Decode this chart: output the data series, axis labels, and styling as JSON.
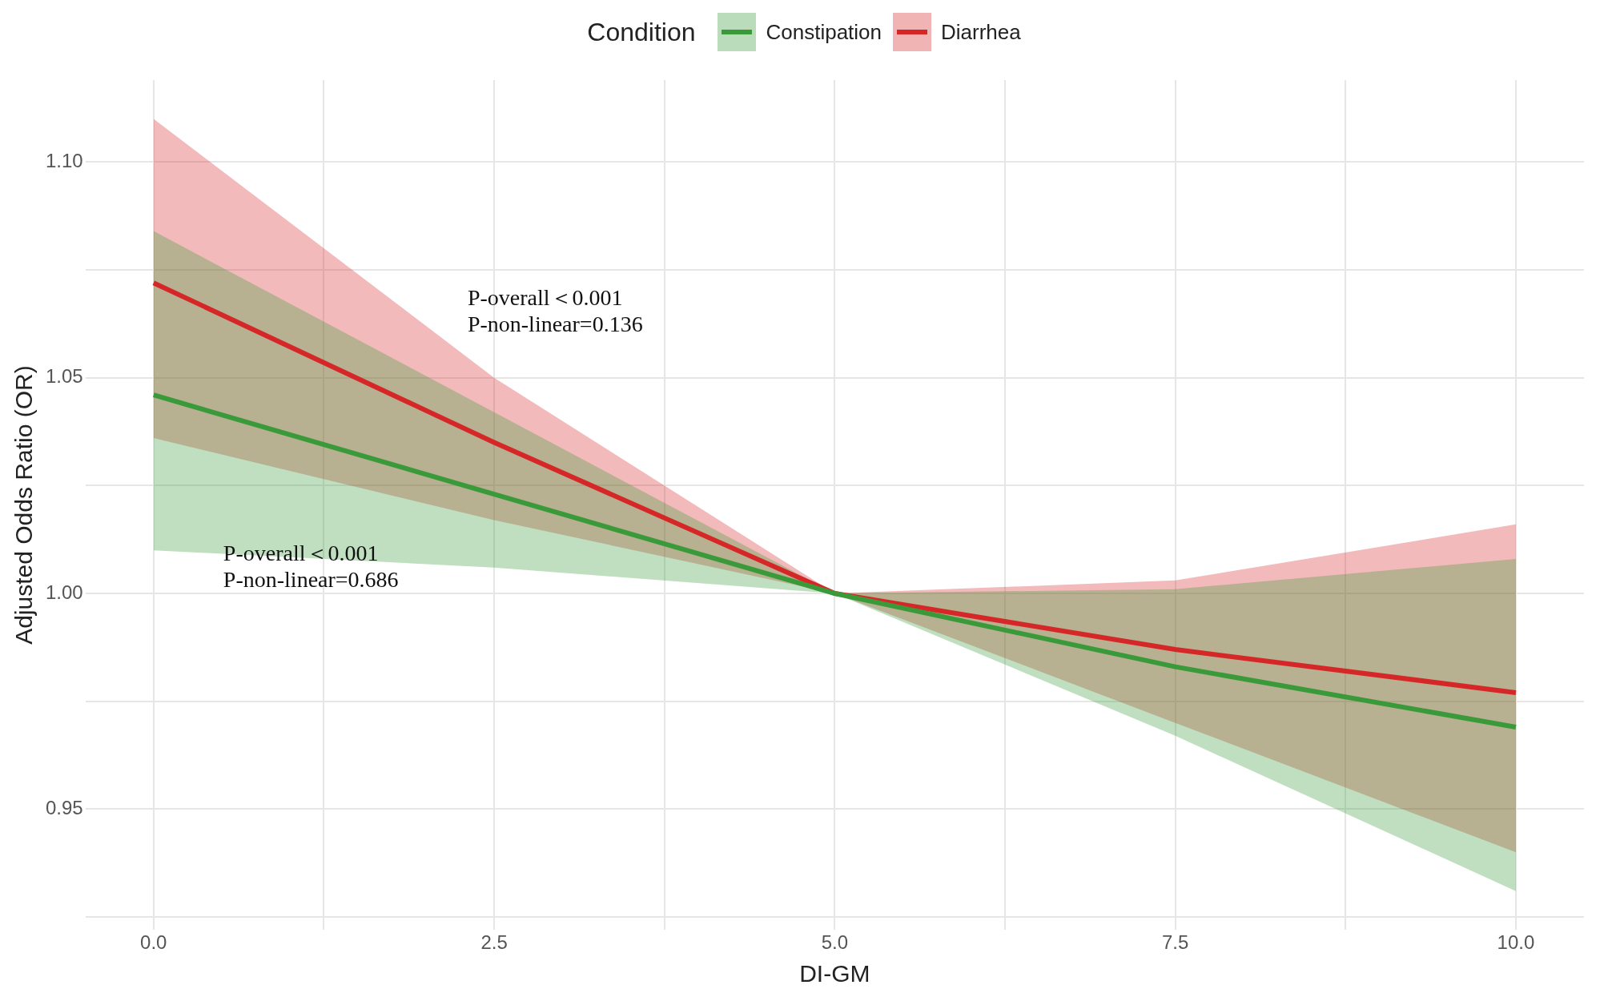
{
  "chart_data": {
    "type": "line",
    "xlabel": "DI-GM",
    "ylabel": "Adjusted Odds Ratio (OR)",
    "legend_title": "Condition",
    "legend": "top",
    "x": [
      0,
      2.5,
      5,
      7.5,
      10
    ],
    "xlim": [
      -0.5,
      10.5
    ],
    "xticks": [
      {
        "value": 0,
        "label": "0.0"
      },
      {
        "value": 1.25,
        "label": null
      },
      2.5,
      {
        "value": 3.75,
        "label": null
      },
      {
        "value": 5,
        "label": "5.0"
      },
      {
        "value": 6.25,
        "label": null
      },
      7.5,
      {
        "value": 8.75,
        "label": null
      },
      {
        "value": 10,
        "label": "10.0"
      }
    ],
    "ylim": [
      0.922,
      1.119
    ],
    "yticks": [
      {
        "value": 0.925,
        "label": null
      },
      0.95,
      {
        "value": 0.975,
        "label": null
      },
      {
        "value": 1,
        "label": "1.00"
      },
      {
        "value": 1.025,
        "label": null
      },
      1.05,
      {
        "value": 1.075,
        "label": null
      },
      {
        "value": 1.1,
        "label": "1.10"
      }
    ],
    "grid": true,
    "marker": "none",
    "line_style": "solid",
    "series": [
      {
        "name": "Constipation",
        "color": "#3a9a3a",
        "values": [
          1.046,
          1.023,
          1.0,
          0.983,
          0.969
        ],
        "lower": [
          1.01,
          1.006,
          1.0,
          0.967,
          0.931
        ],
        "upper": [
          1.084,
          1.042,
          1.0,
          1.001,
          1.008
        ]
      },
      {
        "name": "Diarrhea",
        "color": "#d62728",
        "values": [
          1.072,
          1.035,
          1.0,
          0.987,
          0.977
        ],
        "lower": [
          1.036,
          1.017,
          1.0,
          0.97,
          0.94
        ],
        "upper": [
          1.11,
          1.05,
          1.0,
          1.003,
          1.016
        ]
      }
    ],
    "annotations": [
      "P-overall＜0.001\nP-non-linear=0.136",
      "P-overall＜0.001\nP-non-linear=0.686"
    ]
  }
}
